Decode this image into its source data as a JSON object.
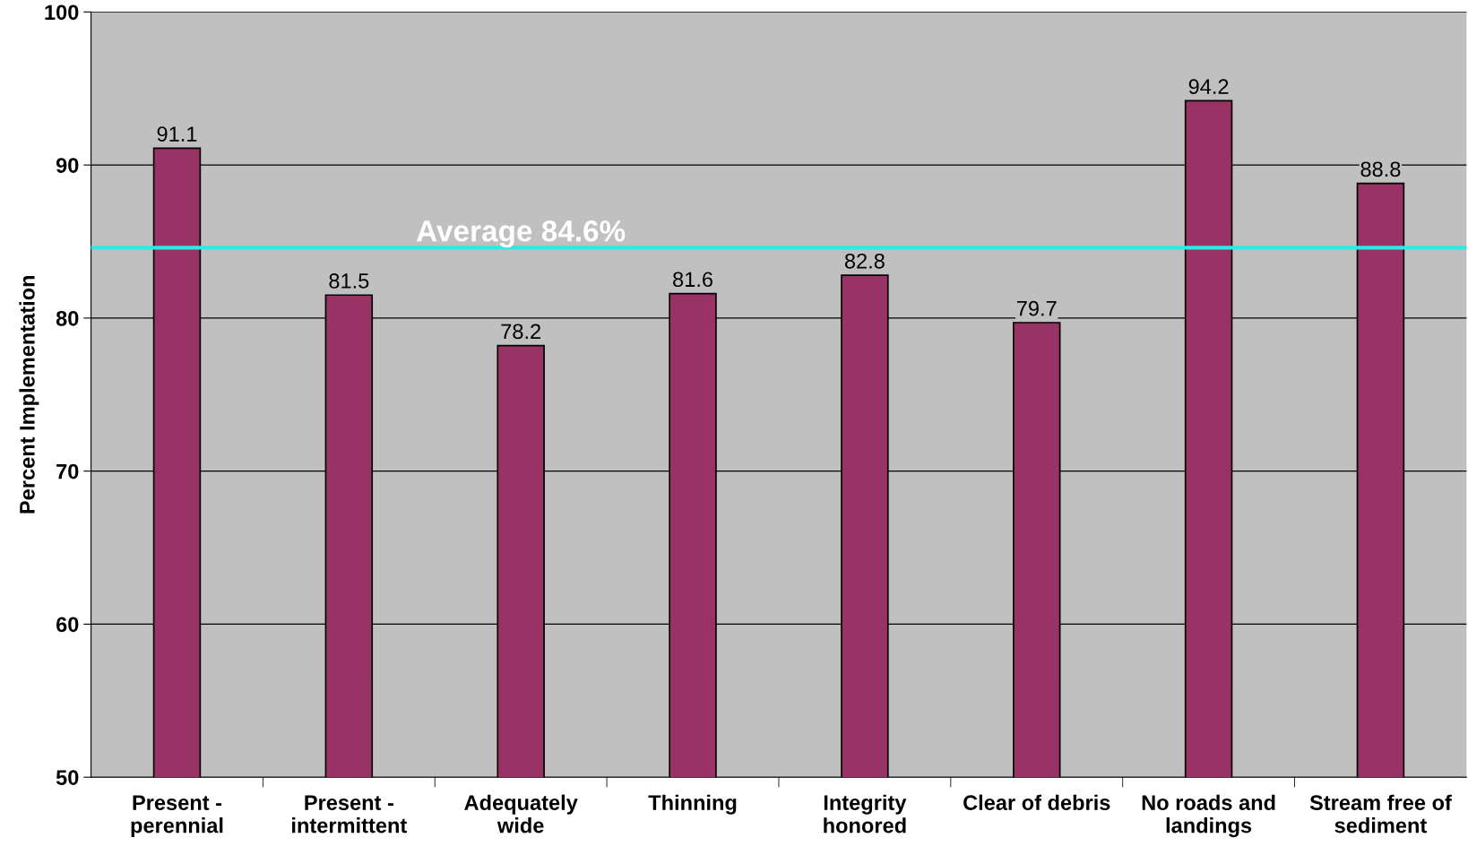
{
  "chart_data": {
    "type": "bar",
    "ylabel": "Percent Implementation",
    "categories": [
      "Present -\nperennial",
      "Present -\nintermittent",
      "Adequately\nwide",
      "Thinning",
      "Integrity\nhonored",
      "Clear of debris",
      "No roads and\nlandings",
      "Stream free of\nsediment"
    ],
    "values": [
      91.1,
      81.5,
      78.2,
      81.6,
      82.8,
      79.7,
      94.2,
      88.8
    ],
    "color": "#993366",
    "data_labels": true,
    "ylim": [
      50,
      100
    ],
    "yticks": [
      50,
      60,
      70,
      80,
      90,
      100
    ],
    "grid": "y",
    "ref_lines": [
      {
        "axis": "y",
        "value": 84.6,
        "label": "Average 84.6%",
        "color": "#33e6e6"
      }
    ]
  }
}
